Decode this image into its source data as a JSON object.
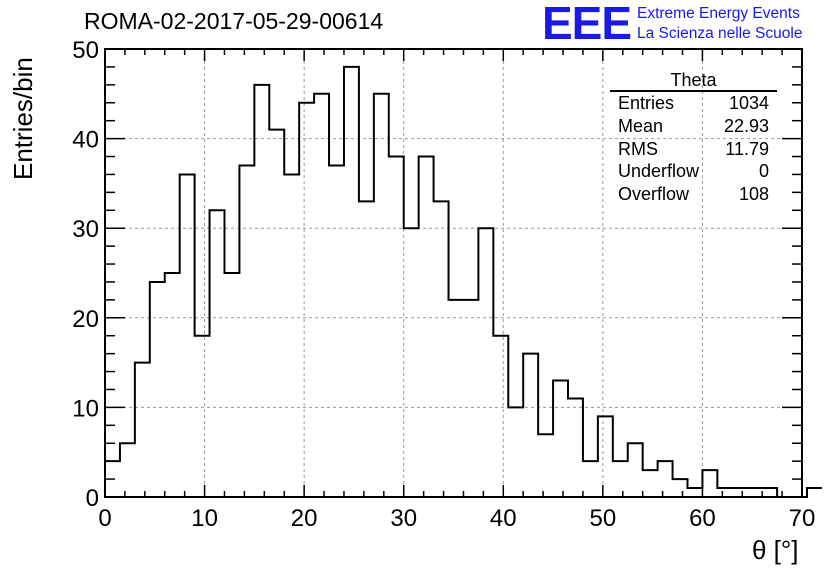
{
  "title": "ROMA-02-2017-05-29-00614",
  "logo": {
    "mark": "EEE",
    "line1": "Extreme Energy Events",
    "line2": "La Scienza nelle Scuole",
    "color": "#1a1ae6"
  },
  "stats": {
    "title": "Theta",
    "rows": [
      {
        "label": "Entries",
        "value": "1034"
      },
      {
        "label": "Mean",
        "value": "22.93"
      },
      {
        "label": "RMS",
        "value": "11.79"
      },
      {
        "label": "Underflow",
        "value": "0"
      },
      {
        "label": "Overflow",
        "value": "108"
      }
    ]
  },
  "chart_data": {
    "type": "bar",
    "style": "step-histogram",
    "xlabel": "θ [°]",
    "ylabel": "Entries/bin",
    "xlim": [
      0,
      70
    ],
    "ylim": [
      0,
      50
    ],
    "bin_width": 1.5,
    "xticks": [
      0,
      10,
      20,
      30,
      40,
      50,
      60,
      70
    ],
    "yticks": [
      0,
      10,
      20,
      30,
      40,
      50
    ],
    "grid": true,
    "bin_edges_start": 0,
    "values": [
      4,
      6,
      15,
      24,
      25,
      36,
      18,
      32,
      25,
      37,
      46,
      41,
      36,
      44,
      45,
      37,
      48,
      33,
      45,
      38,
      30,
      38,
      33,
      22,
      22,
      30,
      18,
      10,
      16,
      7,
      13,
      11,
      4,
      9,
      4,
      6,
      3,
      4,
      2,
      1,
      3,
      1,
      1,
      1,
      1,
      0,
      0,
      1
    ]
  }
}
